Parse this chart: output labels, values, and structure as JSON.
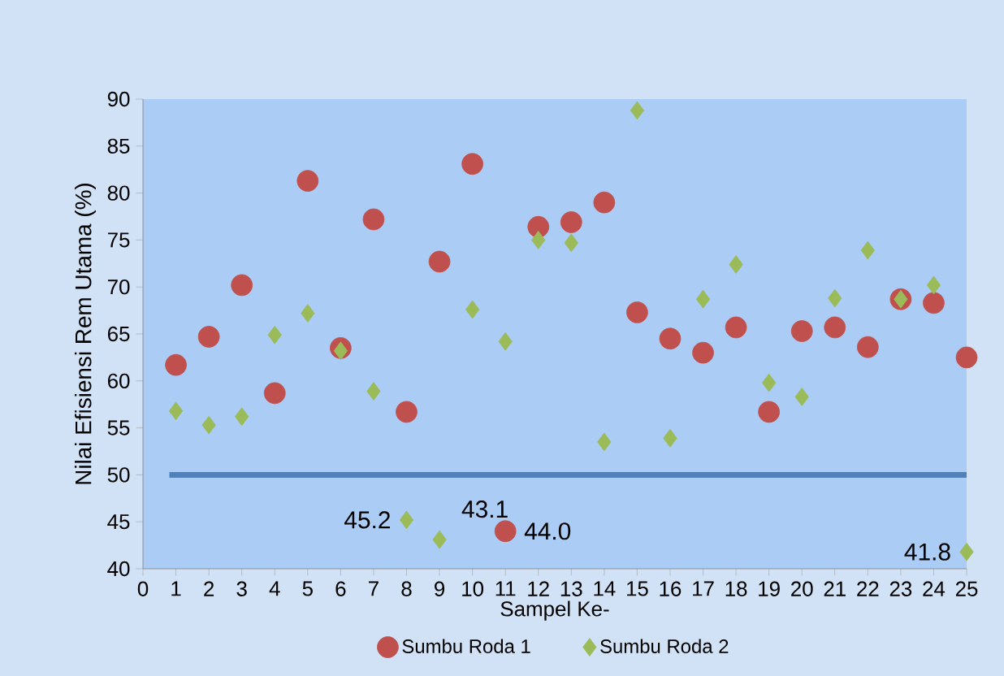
{
  "chart_data": {
    "type": "scatter",
    "xlabel": "Sampel Ke-",
    "ylabel": "Nilai Efisiensi Rem Utama (%)",
    "x": [
      1,
      2,
      3,
      4,
      5,
      6,
      7,
      8,
      9,
      10,
      11,
      12,
      13,
      14,
      15,
      16,
      17,
      18,
      19,
      20,
      21,
      22,
      23,
      24,
      25
    ],
    "series": [
      {
        "name": "Sumbu Roda 1",
        "color": "#c0504d",
        "marker": "circle",
        "values": [
          61.7,
          64.7,
          70.2,
          58.7,
          81.3,
          63.5,
          77.2,
          56.7,
          72.7,
          83.1,
          44.0,
          76.4,
          76.9,
          79.0,
          67.3,
          64.5,
          63.0,
          65.7,
          56.7,
          65.3,
          65.7,
          63.6,
          68.7,
          68.3,
          62.5
        ]
      },
      {
        "name": "Sumbu Roda 2",
        "color": "#9bbb59",
        "marker": "diamond",
        "values": [
          56.8,
          55.3,
          56.2,
          64.9,
          67.2,
          63.2,
          58.9,
          45.2,
          43.1,
          67.6,
          64.2,
          75.0,
          74.7,
          53.5,
          88.8,
          53.9,
          68.7,
          72.4,
          59.8,
          58.3,
          68.8,
          73.9,
          68.7,
          70.2,
          41.8
        ]
      }
    ],
    "xlim": [
      0,
      25
    ],
    "xticks": [
      0,
      1,
      2,
      3,
      4,
      5,
      6,
      7,
      8,
      9,
      10,
      11,
      12,
      13,
      14,
      15,
      16,
      17,
      18,
      19,
      20,
      21,
      22,
      23,
      24,
      25
    ],
    "ylim": [
      40,
      90
    ],
    "yticks": [
      40,
      45,
      50,
      55,
      60,
      65,
      70,
      75,
      80,
      85,
      90
    ],
    "ref_lines": [
      {
        "axis": "y",
        "value": 50,
        "color": "#4f81bd",
        "line_style": "solid"
      }
    ],
    "annotations": [
      {
        "text": "45.2",
        "x": 8,
        "y": 45.2
      },
      {
        "text": "43.1",
        "x": 9,
        "y": 43.1
      },
      {
        "text": "44.0",
        "x": 11,
        "y": 44.0
      },
      {
        "text": "41.8",
        "x": 25,
        "y": 41.8
      }
    ],
    "grid": false,
    "legend": "bottom"
  }
}
